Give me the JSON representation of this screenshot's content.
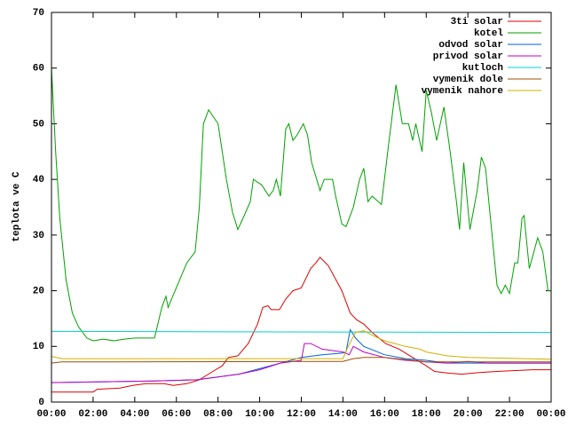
{
  "chart_data": {
    "type": "line",
    "ylabel": "teplota ve C",
    "xlim": [
      0,
      24
    ],
    "xticks": [
      {
        "value": 0,
        "label": "00:00"
      },
      {
        "value": 2,
        "label": "02:00"
      },
      {
        "value": 4,
        "label": "04:00"
      },
      {
        "value": 6,
        "label": "06:00"
      },
      {
        "value": 8,
        "label": "08:00"
      },
      {
        "value": 10,
        "label": "10:00"
      },
      {
        "value": 12,
        "label": "12:00"
      },
      {
        "value": 14,
        "label": "14:00"
      },
      {
        "value": 16,
        "label": "16:00"
      },
      {
        "value": 18,
        "label": "18:00"
      },
      {
        "value": 20,
        "label": "20:00"
      },
      {
        "value": 22,
        "label": "22:00"
      },
      {
        "value": 24,
        "label": "00:00"
      }
    ],
    "ylim": [
      0,
      70
    ],
    "yticks": [
      0,
      10,
      20,
      30,
      40,
      50,
      60,
      70
    ],
    "grid": false,
    "legend": "top-right",
    "series": [
      {
        "name": "3ti solar",
        "color": "#e00000",
        "x": [
          0,
          2,
          2.2,
          3.3,
          3.9,
          4.55,
          5.4,
          5.85,
          6.5,
          7.1,
          7.75,
          8.2,
          8.5,
          8.95,
          9.45,
          9.9,
          10.15,
          10.4,
          10.55,
          10.95,
          11.25,
          11.6,
          12,
          12.45,
          12.7,
          12.9,
          13.3,
          13.95,
          14.35,
          14.65,
          15,
          15.4,
          16.05,
          16.7,
          17.35,
          18,
          18.4,
          19.05,
          19.7,
          20.55,
          21.4,
          23.1,
          24
        ],
        "values": [
          1.8,
          1.8,
          2.3,
          2.5,
          3,
          3.3,
          3.3,
          3,
          3.3,
          4,
          5.5,
          6.5,
          8,
          8.3,
          10.5,
          14,
          17,
          17.3,
          16.6,
          16.6,
          18.5,
          20,
          20.5,
          24,
          25,
          26,
          24.5,
          20,
          16,
          14.8,
          14,
          12.5,
          10.5,
          9.5,
          8,
          6.5,
          5.5,
          5.2,
          5,
          5.3,
          5.5,
          5.8,
          5.8
        ]
      },
      {
        "name": "kotel",
        "color": "#00a000",
        "x": [
          0,
          0.2,
          0.4,
          0.7,
          1,
          1.3,
          1.7,
          2,
          2.5,
          3,
          3.5,
          4,
          4.5,
          4.95,
          5.3,
          5.5,
          5.6,
          6.05,
          6.5,
          6.9,
          7.1,
          7.3,
          7.55,
          8,
          8.4,
          8.7,
          8.95,
          9.2,
          9.55,
          9.7,
          10.1,
          10.45,
          10.65,
          10.8,
          11,
          11.25,
          11.4,
          11.6,
          11.8,
          12.1,
          12.3,
          12.5,
          12.9,
          13.1,
          13.5,
          13.65,
          13.95,
          14.15,
          14.5,
          14.8,
          15,
          15.2,
          15.4,
          15.85,
          16.15,
          16.55,
          16.85,
          17.15,
          17.35,
          17.5,
          17.8,
          18,
          18.25,
          18.5,
          18.85,
          19.15,
          19.45,
          19.6,
          19.8,
          20.1,
          20.45,
          20.65,
          20.85,
          21.4,
          21.6,
          21.8,
          22,
          22.25,
          22.4,
          22.6,
          22.7,
          22.95,
          23.1,
          23.35,
          23.6,
          23.85,
          24
        ],
        "values": [
          60,
          45,
          33,
          22,
          16,
          13.5,
          11.5,
          11,
          11.3,
          11,
          11.3,
          11.5,
          11.5,
          11.5,
          17,
          19,
          17,
          21,
          25,
          27,
          35,
          50,
          52.5,
          50,
          40,
          34,
          31,
          33,
          36,
          40,
          39,
          37,
          38,
          40,
          37,
          49,
          50,
          47,
          48,
          50,
          48,
          43,
          38,
          40,
          40,
          37,
          32,
          31.5,
          35,
          40,
          42,
          36,
          37,
          35.5,
          45,
          57,
          50,
          50,
          47,
          50,
          45,
          56,
          52,
          47,
          53,
          45,
          36,
          31,
          43,
          31,
          38,
          44,
          42,
          21,
          19.5,
          21,
          19.5,
          25,
          25,
          33,
          33.5,
          24,
          26,
          29.5,
          27,
          20,
          20
        ]
      },
      {
        "name": "odvod solar",
        "color": "#0060e0",
        "x": [
          0,
          5,
          7,
          9,
          10,
          11,
          12,
          13,
          14,
          14.15,
          14.35,
          14.6,
          15,
          16,
          17,
          18,
          19,
          24
        ],
        "values": [
          3.5,
          3.8,
          4,
          5,
          6,
          7,
          8,
          8.5,
          8.8,
          9,
          13,
          11.5,
          10,
          8.5,
          7.8,
          7.5,
          7,
          7
        ]
      },
      {
        "name": "privod solar",
        "color": "#c000c0",
        "x": [
          0,
          5,
          7,
          9,
          10,
          11,
          12,
          12.15,
          12.45,
          13,
          14,
          14.3,
          14.5,
          15,
          16,
          17,
          18,
          19,
          20,
          21,
          24
        ],
        "values": [
          3.5,
          3.8,
          4,
          5,
          5.8,
          7,
          7.5,
          10.5,
          10.5,
          9.5,
          9,
          8.5,
          10,
          9,
          8,
          7.5,
          7.2,
          7,
          7.3,
          7,
          7
        ]
      },
      {
        "name": "kutloch",
        "color": "#00d0d0",
        "x": [
          0,
          24
        ],
        "values": [
          12.7,
          12.5
        ]
      },
      {
        "name": "vymenik dole",
        "color": "#a05000",
        "x": [
          0,
          0.5,
          14,
          14.5,
          15,
          16,
          17,
          18,
          24
        ],
        "values": [
          7,
          7.2,
          7.3,
          7.8,
          8,
          8,
          7.6,
          7.2,
          7.2
        ]
      },
      {
        "name": "vymenik nahore",
        "color": "#d0b000",
        "x": [
          0,
          0.5,
          3,
          14,
          14.25,
          14.6,
          15,
          15.4,
          16,
          17,
          17.7,
          18,
          19,
          20,
          24
        ],
        "values": [
          8.2,
          7.8,
          7.8,
          7.8,
          10,
          12.5,
          12.8,
          12,
          11,
          10,
          9.5,
          9,
          8.3,
          8,
          7.7
        ]
      }
    ]
  }
}
